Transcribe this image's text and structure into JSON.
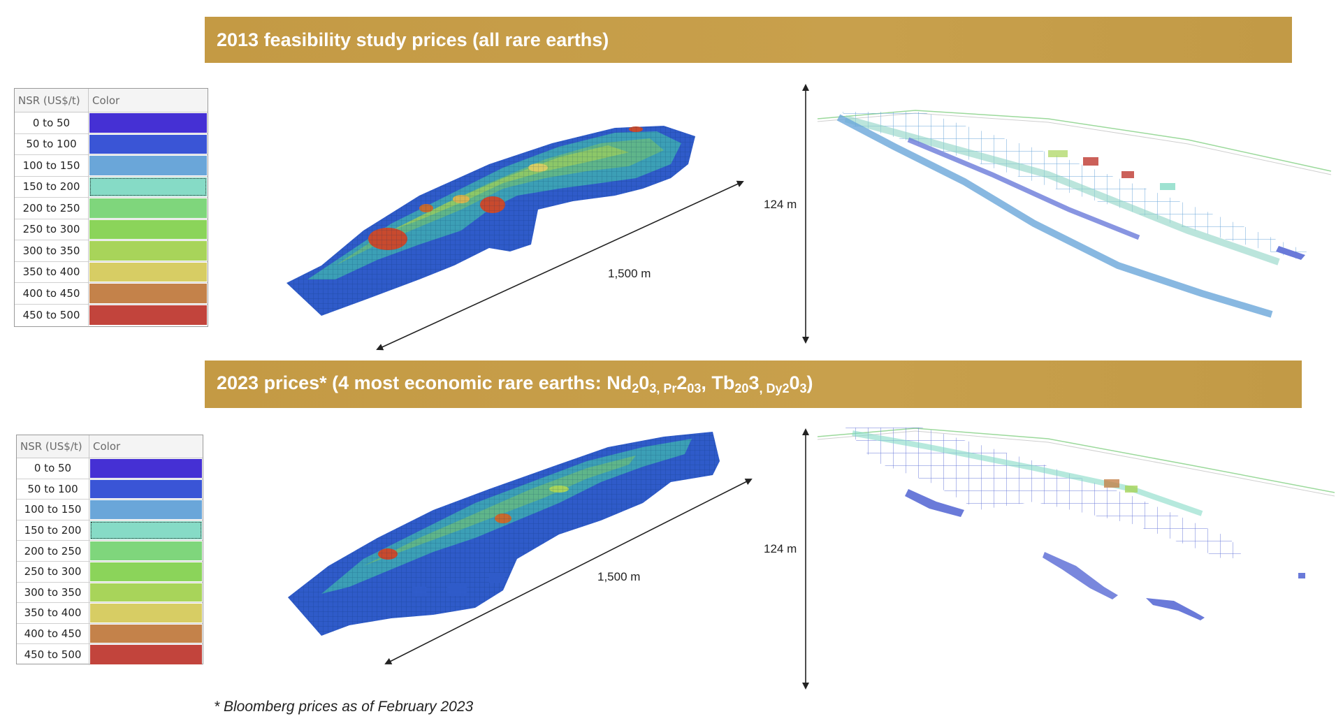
{
  "top": {
    "title": "2013 feasibility study prices (all rare earths)",
    "length_label": "1,500 m",
    "height_label": "124 m"
  },
  "bottom": {
    "title_parts": [
      "2023 prices* (4 most economic rare earths: Nd",
      "2",
      "0",
      "3",
      ", Pr",
      "2",
      "0",
      "3",
      ", Tb",
      "2",
      "0",
      "3",
      ", Dy",
      "2",
      "0",
      "3",
      ")"
    ],
    "length_label": "1,500 m",
    "height_label": "124 m"
  },
  "legend": {
    "col_nsr": "NSR (US$/t)",
    "col_color": "Color",
    "rows": [
      {
        "label": "0 to 50",
        "color": "#4530d4"
      },
      {
        "label": "50 to 100",
        "color": "#3a55d6"
      },
      {
        "label": "100 to 150",
        "color": "#6aa6d9"
      },
      {
        "label": "150 to 200",
        "color": "#86dbc6"
      },
      {
        "label": "200 to 250",
        "color": "#7fd67c"
      },
      {
        "label": "250 to 300",
        "color": "#8bd45a"
      },
      {
        "label": "300 to 350",
        "color": "#a8d45a"
      },
      {
        "label": "350 to 400",
        "color": "#d7cd64"
      },
      {
        "label": "400 to 450",
        "color": "#c4824a"
      },
      {
        "label": "450 to 500",
        "color": "#c2443c"
      }
    ]
  },
  "footnote": "* Bloomberg prices as of February 2023"
}
